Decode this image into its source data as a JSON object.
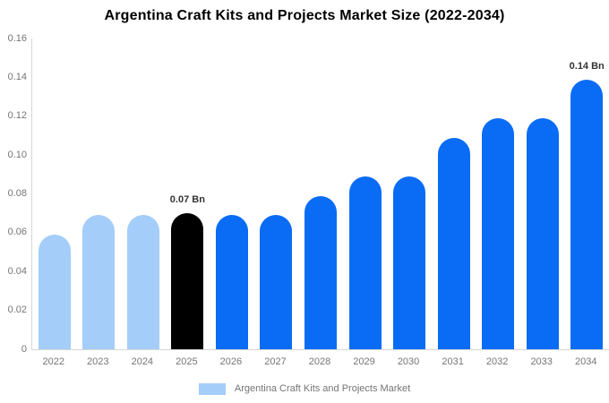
{
  "title": "Argentina Craft Kits and Projects Market Size (2022-2034)",
  "legend": {
    "label": "Argentina Craft Kits and Projects Market",
    "swatch_color": "#a4cdf9"
  },
  "colors": {
    "historical_bar": "#a4cdf9",
    "base_year_bar": "#000000",
    "forecast_bar": "#0a6cf5",
    "axis_line": "#d6d6d6",
    "tick_text": "#757575",
    "data_label_text": "#333333",
    "title_text": "#000000"
  },
  "chart_data": {
    "type": "bar",
    "title": "Argentina Craft Kits and Projects Market Size (2022-2034)",
    "categories": [
      "2022",
      "2023",
      "2024",
      "2025",
      "2026",
      "2027",
      "2028",
      "2029",
      "2030",
      "2031",
      "2032",
      "2033",
      "2034"
    ],
    "values": [
      0.059,
      0.069,
      0.069,
      0.07,
      0.069,
      0.069,
      0.079,
      0.089,
      0.089,
      0.109,
      0.119,
      0.119,
      0.139
    ],
    "bar_roles": [
      "historical",
      "historical",
      "historical",
      "base_year",
      "forecast",
      "forecast",
      "forecast",
      "forecast",
      "forecast",
      "forecast",
      "forecast",
      "forecast",
      "forecast"
    ],
    "data_labels": [
      "",
      "",
      "",
      "0.07 Bn",
      "",
      "",
      "",
      "",
      "",
      "",
      "",
      "",
      "0.14 Bn"
    ],
    "unit": "Bn",
    "xlabel": "",
    "ylabel": "",
    "ylim": [
      0,
      0.16
    ],
    "yticks": [
      "0",
      "0.02",
      "0.04",
      "0.06",
      "0.08",
      "0.10",
      "0.12",
      "0.14",
      "0.16"
    ],
    "grid": false,
    "legend_position": "bottom",
    "legend_entries": [
      "Argentina Craft Kits and Projects Market"
    ]
  }
}
